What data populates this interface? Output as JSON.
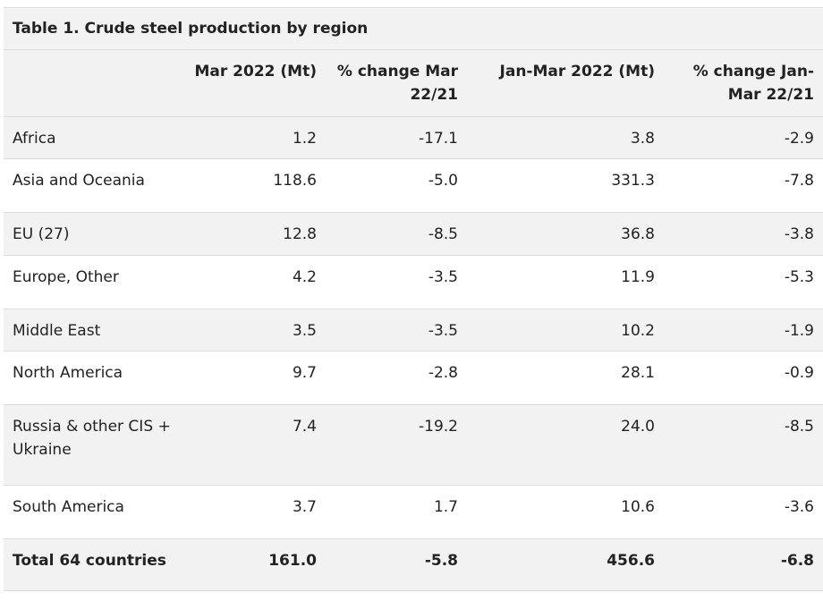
{
  "table": {
    "title": "Table 1. Crude steel production by region",
    "headers": [
      "",
      "Mar 2022 (Mt)",
      "% change Mar 22/21",
      "Jan-Mar 2022 (Mt)",
      "% change Jan-Mar 22/21"
    ],
    "rows": [
      {
        "region": "Africa",
        "mar": "1.2",
        "mar_change": "-17.1",
        "ytd": "3.8",
        "ytd_change": "-2.9"
      },
      {
        "region": "Asia and Oceania",
        "mar": "118.6",
        "mar_change": "-5.0",
        "ytd": "331.3",
        "ytd_change": "-7.8"
      },
      {
        "region": "EU (27)",
        "mar": "12.8",
        "mar_change": "-8.5",
        "ytd": "36.8",
        "ytd_change": "-3.8"
      },
      {
        "region": "Europe, Other",
        "mar": "4.2",
        "mar_change": "-3.5",
        "ytd": "11.9",
        "ytd_change": "-5.3"
      },
      {
        "region": "Middle East",
        "mar": "3.5",
        "mar_change": "-3.5",
        "ytd": "10.2",
        "ytd_change": "-1.9"
      },
      {
        "region": "North America",
        "mar": "9.7",
        "mar_change": "-2.8",
        "ytd": "28.1",
        "ytd_change": "-0.9"
      },
      {
        "region": "Russia & other CIS + Ukraine",
        "mar": "7.4",
        "mar_change": "-19.2",
        "ytd": "24.0",
        "ytd_change": "-8.5"
      },
      {
        "region": "South America",
        "mar": "3.7",
        "mar_change": "1.7",
        "ytd": "10.6",
        "ytd_change": "-3.6"
      }
    ],
    "total": {
      "region": "Total 64 countries",
      "mar": "161.0",
      "mar_change": "-5.8",
      "ytd": "456.6",
      "ytd_change": "-6.8"
    }
  }
}
